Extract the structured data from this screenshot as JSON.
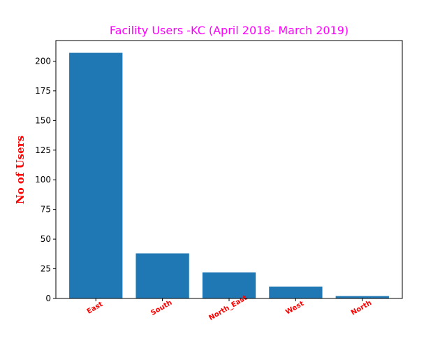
{
  "colors": {
    "title": "#ff00ff",
    "ylabel": "#ff0000",
    "xtick_labels": "#ff0000",
    "bar": "#1f77b4",
    "axes": "#000000"
  },
  "chart_data": {
    "type": "bar",
    "title": "Facility Users -KC (April 2018- March 2019)",
    "xlabel": "",
    "ylabel": "No of Users",
    "categories": [
      "East",
      "South",
      "North_East",
      "West",
      "North"
    ],
    "values": [
      207,
      38,
      22,
      10,
      2
    ],
    "ylim": [
      0,
      217.35
    ],
    "yticks": [
      0,
      25,
      50,
      75,
      100,
      125,
      150,
      175,
      200
    ],
    "ytick_labels": [
      "0",
      "25",
      "50",
      "75",
      "100",
      "125",
      "150",
      "175",
      "200"
    ],
    "grid": false,
    "legend": "none"
  }
}
